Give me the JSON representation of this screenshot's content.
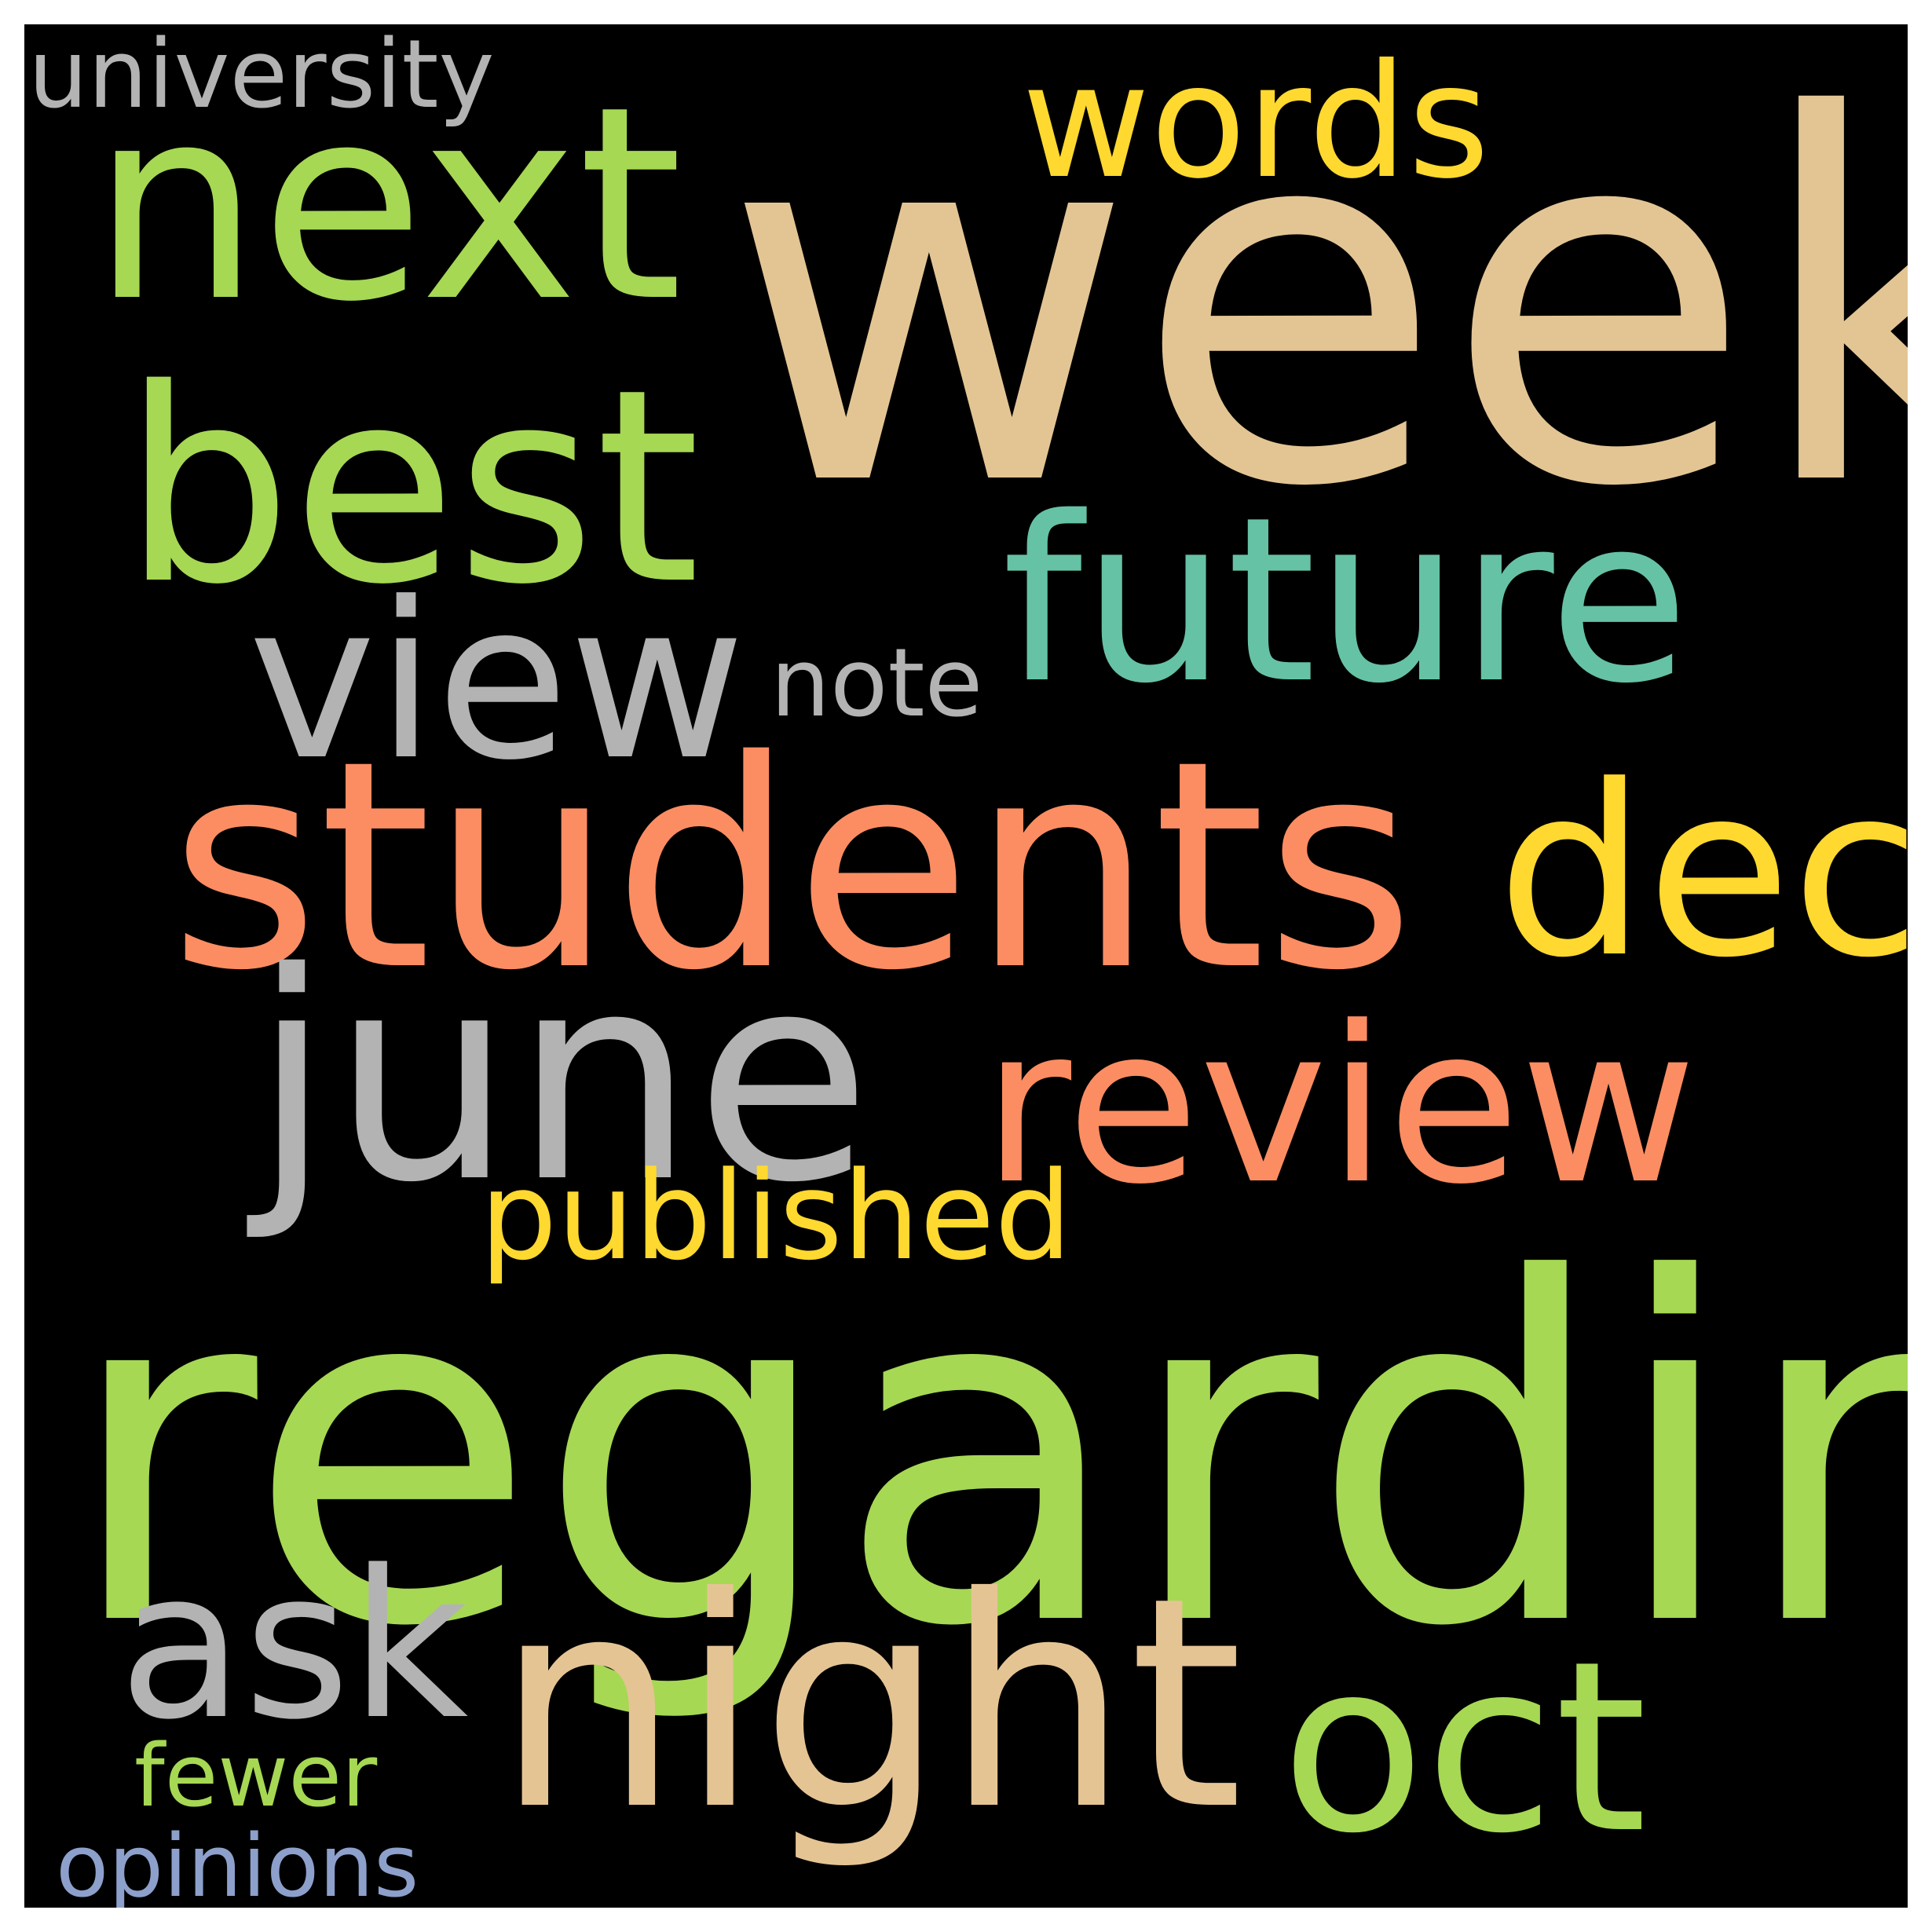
{
  "background_color": "#000000",
  "words": {
    "week": {
      "text": "week",
      "color": "#e3c594"
    },
    "regarding": {
      "text": "regarding",
      "color": "#a6d854"
    },
    "students": {
      "text": "students",
      "color": "#fc8d62"
    },
    "june": {
      "text": "june",
      "color": "#b3b3b3"
    },
    "next": {
      "text": "next",
      "color": "#a6d854"
    },
    "best": {
      "text": "best",
      "color": "#a6d854"
    },
    "night": {
      "text": "night",
      "color": "#e5c494"
    },
    "future": {
      "text": "future",
      "color": "#66c2a5"
    },
    "view": {
      "text": "view",
      "color": "#b3b3b3"
    },
    "dec": {
      "text": "dec",
      "color": "#ffd92f"
    },
    "review": {
      "text": "review",
      "color": "#fc8d62"
    },
    "oct": {
      "text": "oct",
      "color": "#a6d854"
    },
    "ask": {
      "text": "ask",
      "color": "#b3b3b3"
    },
    "words": {
      "text": "words",
      "color": "#ffd92f"
    },
    "published": {
      "text": "published",
      "color": "#ffd92f"
    },
    "note": {
      "text": "note",
      "color": "#b3b3b3"
    },
    "university": {
      "text": "university",
      "color": "#b3b3b3"
    },
    "fewer": {
      "text": "fewer",
      "color": "#a6d854"
    },
    "opinions": {
      "text": "opinions",
      "color": "#8da0cb"
    }
  }
}
